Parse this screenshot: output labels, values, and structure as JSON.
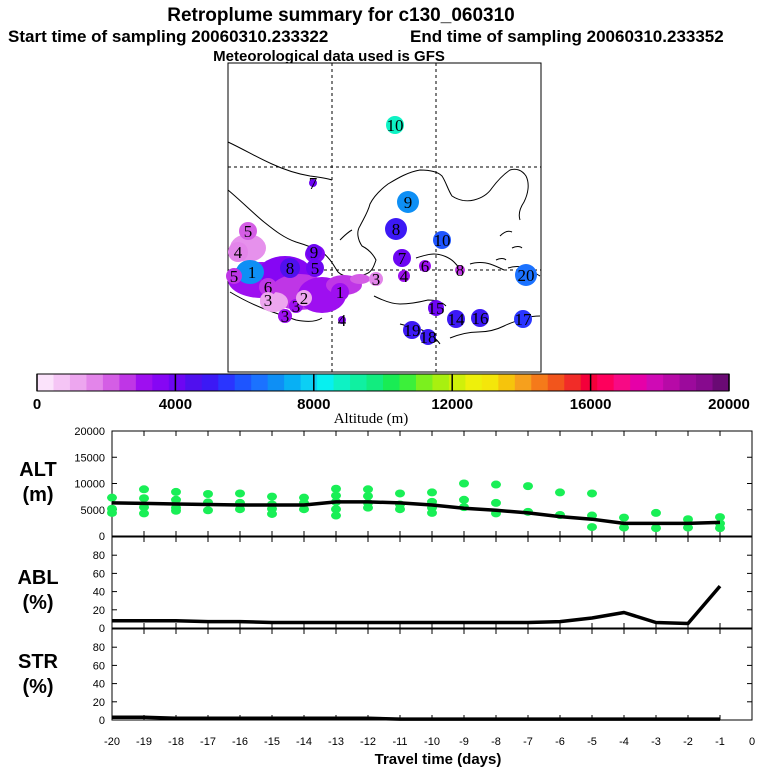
{
  "header": {
    "title": "Retroplume summary for c130_060310",
    "start_label": "Start time of sampling 20060310.233322",
    "end_label": "End time of sampling 20060310.233352",
    "met_label": "Meteorological data used is GFS"
  },
  "colors": {
    "colorbar": [
      "#fbe3fb",
      "#f5c5f5",
      "#eda6ef",
      "#e385ea",
      "#d45ee5",
      "#bf36e6",
      "#9e0ff0",
      "#8606f4",
      "#6d06f3",
      "#5010ee",
      "#3c19f5",
      "#2a35ff",
      "#1e55ff",
      "#1b72ff",
      "#0e8ff5",
      "#08b0f4",
      "#0ccff4",
      "#07f0f0",
      "#0ef2c4",
      "#10f0a1",
      "#12ec7f",
      "#19ec54",
      "#3cf03a",
      "#7bf01e",
      "#a8f010",
      "#d0f00a",
      "#eef00b",
      "#f4e60a",
      "#f6c40c",
      "#f6a01d",
      "#f57a1a",
      "#f2551c",
      "#f12c28",
      "#f4003a",
      "#fe005c",
      "#f70a85",
      "#e600a8",
      "#cf0ab5",
      "#b70aa7",
      "#9c0a9c",
      "#870a8e",
      "#6a0a74"
    ],
    "line": "#000000",
    "points": "#19ef56"
  },
  "map": {
    "labels": [
      {
        "text": "10",
        "color": "#0ef2c4"
      },
      {
        "text": "7",
        "color": "#6d06f3"
      },
      {
        "text": "9",
        "color": "#0e8ff5"
      },
      {
        "text": "8",
        "color": "#3c19f5"
      },
      {
        "text": "10",
        "color": "#1e55ff"
      },
      {
        "text": "7",
        "color": "#6d06f3"
      },
      {
        "text": "6",
        "color": "#9e0ff0"
      },
      {
        "text": "8",
        "color": "#bf36e6"
      },
      {
        "text": "20",
        "color": "#1b72ff"
      },
      {
        "text": "5",
        "color": "#d45ee5"
      },
      {
        "text": "4",
        "color": "#e385ea"
      },
      {
        "text": "4",
        "color": "#8606f4"
      },
      {
        "text": "3",
        "color": "#9e0ff0"
      },
      {
        "text": "3",
        "color": "#9e0ff0"
      },
      {
        "text": "5",
        "color": "#6d06f3"
      },
      {
        "text": "8",
        "color": "#5010ee"
      },
      {
        "text": "1",
        "color": "#0e8ff5"
      },
      {
        "text": "6",
        "color": "#bf36e6"
      },
      {
        "text": "3",
        "color": "#eda6ef"
      },
      {
        "text": "2",
        "color": "#eda6ef"
      },
      {
        "text": "1",
        "color": "#9e0ff0"
      },
      {
        "text": "3",
        "color": "#e385ea"
      },
      {
        "text": "4",
        "color": "#9e0ff0"
      },
      {
        "text": "5",
        "color": "#bf36e6"
      },
      {
        "text": "15",
        "color": "#6d06f3"
      },
      {
        "text": "14",
        "color": "#3c19f5"
      },
      {
        "text": "16",
        "color": "#3c19f5"
      },
      {
        "text": "17",
        "color": "#2a35ff"
      },
      {
        "text": "19",
        "color": "#3c19f5"
      },
      {
        "text": "18",
        "color": "#3c19f5"
      },
      {
        "text": "9",
        "color": "#6d06f3"
      }
    ]
  },
  "colorbar": {
    "ticks": [
      "0",
      "4000",
      "8000",
      "12000",
      "16000",
      "20000"
    ],
    "label": "Altitude (m)"
  },
  "chart_data": [
    {
      "type": "line",
      "name": "ALT",
      "ylabel": "ALT\n(m)",
      "ylabel_top": "ALT",
      "ylabel_unit": "(m)",
      "ylim": [
        0,
        20000
      ],
      "yticks": [
        "0",
        "5000",
        "10000",
        "15000",
        "20000"
      ],
      "x": [
        -20,
        -19,
        -18,
        -17,
        -16,
        -15,
        -14,
        -13,
        -12,
        -11,
        -10,
        -9,
        -8,
        -7,
        -6,
        -5,
        -4,
        -3,
        -2,
        -1
      ],
      "values": [
        6300,
        6200,
        6100,
        6000,
        5900,
        5900,
        5900,
        6500,
        6500,
        6300,
        5900,
        5300,
        4900,
        4400,
        3700,
        3200,
        2400,
        2400,
        2400,
        2600
      ],
      "scatter": [
        {
          "x": -20,
          "y": 7300
        },
        {
          "x": -20,
          "y": 5200
        },
        {
          "x": -20,
          "y": 4400
        },
        {
          "x": -19,
          "y": 8900
        },
        {
          "x": -19,
          "y": 7200
        },
        {
          "x": -19,
          "y": 5500
        },
        {
          "x": -19,
          "y": 4300
        },
        {
          "x": -18,
          "y": 8400
        },
        {
          "x": -18,
          "y": 6900
        },
        {
          "x": -18,
          "y": 5400
        },
        {
          "x": -18,
          "y": 4800
        },
        {
          "x": -17,
          "y": 8000
        },
        {
          "x": -17,
          "y": 6400
        },
        {
          "x": -17,
          "y": 4900
        },
        {
          "x": -16,
          "y": 8100
        },
        {
          "x": -16,
          "y": 6300
        },
        {
          "x": -16,
          "y": 5100
        },
        {
          "x": -15,
          "y": 7500
        },
        {
          "x": -15,
          "y": 6000
        },
        {
          "x": -15,
          "y": 5200
        },
        {
          "x": -15,
          "y": 4200
        },
        {
          "x": -14,
          "y": 7300
        },
        {
          "x": -14,
          "y": 6300
        },
        {
          "x": -14,
          "y": 5100
        },
        {
          "x": -13,
          "y": 9000
        },
        {
          "x": -13,
          "y": 7700
        },
        {
          "x": -13,
          "y": 6500
        },
        {
          "x": -13,
          "y": 5100
        },
        {
          "x": -13,
          "y": 3900
        },
        {
          "x": -12,
          "y": 8900
        },
        {
          "x": -12,
          "y": 7600
        },
        {
          "x": -12,
          "y": 6300
        },
        {
          "x": -12,
          "y": 5400
        },
        {
          "x": -11,
          "y": 8100
        },
        {
          "x": -11,
          "y": 6000
        },
        {
          "x": -11,
          "y": 5100
        },
        {
          "x": -10,
          "y": 8300
        },
        {
          "x": -10,
          "y": 6500
        },
        {
          "x": -10,
          "y": 5400
        },
        {
          "x": -10,
          "y": 4400
        },
        {
          "x": -9,
          "y": 10000
        },
        {
          "x": -9,
          "y": 6900
        },
        {
          "x": -9,
          "y": 5500
        },
        {
          "x": -8,
          "y": 9800
        },
        {
          "x": -8,
          "y": 6300
        },
        {
          "x": -8,
          "y": 4300
        },
        {
          "x": -7,
          "y": 9500
        },
        {
          "x": -7,
          "y": 4600
        },
        {
          "x": -6,
          "y": 8300
        },
        {
          "x": -6,
          "y": 4000
        },
        {
          "x": -5,
          "y": 8100
        },
        {
          "x": -5,
          "y": 3900
        },
        {
          "x": -5,
          "y": 1700
        },
        {
          "x": -4,
          "y": 3500
        },
        {
          "x": -4,
          "y": 1600
        },
        {
          "x": -3,
          "y": 4400
        },
        {
          "x": -3,
          "y": 1500
        },
        {
          "x": -2,
          "y": 3200
        },
        {
          "x": -2,
          "y": 1600
        },
        {
          "x": -1,
          "y": 3600
        },
        {
          "x": -1,
          "y": 2400
        },
        {
          "x": -1,
          "y": 1500
        }
      ]
    },
    {
      "type": "line",
      "name": "ABL",
      "ylabel_top": "ABL",
      "ylabel_unit": "(%)",
      "ylim": [
        0,
        100
      ],
      "yticks": [
        "0",
        "20",
        "40",
        "60",
        "80"
      ],
      "x": [
        -20,
        -19,
        -18,
        -17,
        -16,
        -15,
        -14,
        -13,
        -12,
        -11,
        -10,
        -9,
        -8,
        -7,
        -6,
        -5,
        -4,
        -3,
        -2,
        -1
      ],
      "values": [
        8,
        8,
        8,
        7,
        7,
        6,
        6,
        6,
        6,
        6,
        6,
        6,
        6,
        6,
        7,
        11,
        17,
        6,
        5,
        46
      ]
    },
    {
      "type": "line",
      "name": "STR",
      "ylabel_top": "STR",
      "ylabel_unit": "(%)",
      "ylim": [
        0,
        100
      ],
      "yticks": [
        "0",
        "20",
        "40",
        "60",
        "80"
      ],
      "x": [
        -20,
        -19,
        -18,
        -17,
        -16,
        -15,
        -14,
        -13,
        -12,
        -11,
        -10,
        -9,
        -8,
        -7,
        -6,
        -5,
        -4,
        -3,
        -2,
        -1
      ],
      "values": [
        3,
        3,
        2,
        2,
        2,
        2,
        2,
        2,
        2,
        1,
        1,
        1,
        1,
        1,
        1,
        1,
        1,
        1,
        1,
        1
      ]
    }
  ],
  "xaxis": {
    "ticks": [
      "-20",
      "-19",
      "-18",
      "-17",
      "-16",
      "-15",
      "-14",
      "-13",
      "-12",
      "-11",
      "-10",
      "-9",
      "-8",
      "-7",
      "-6",
      "-5",
      "-4",
      "-3",
      "-2",
      "-1",
      "0"
    ],
    "label": "Travel time (days)"
  }
}
